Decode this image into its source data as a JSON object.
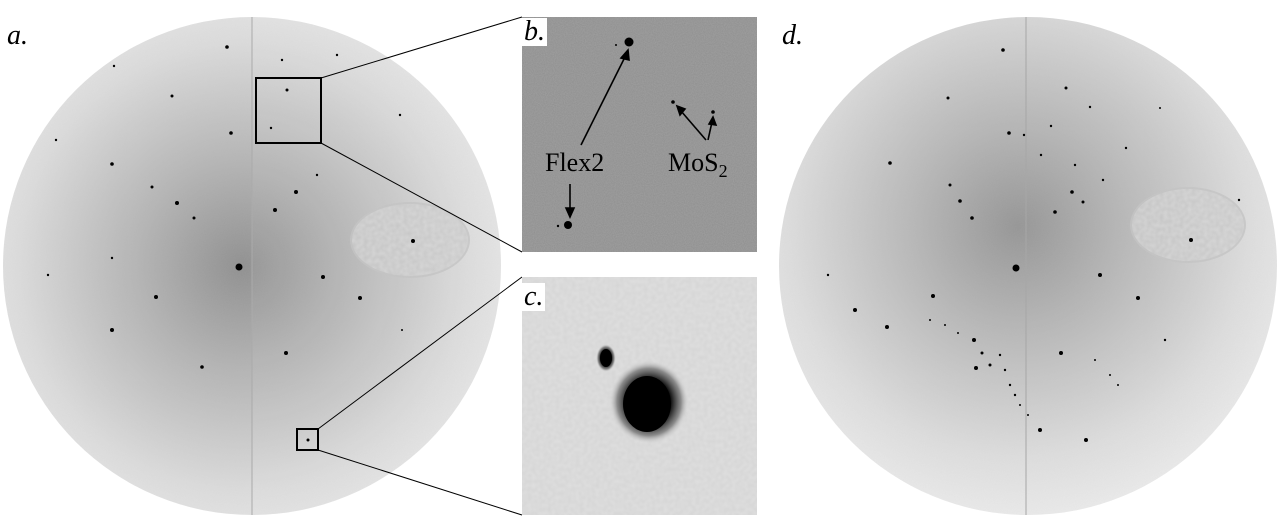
{
  "panels": {
    "a": {
      "label": "a."
    },
    "b": {
      "label": "b.",
      "annotations": {
        "flex2": "Flex2",
        "mos2_base": "MoS",
        "mos2_sub": "2"
      }
    },
    "c": {
      "label": "c."
    },
    "d": {
      "label": "d."
    }
  },
  "colors": {
    "screen_light": "#e9e9e9",
    "screen_dark": "#9b9b9b",
    "spot": "#000000",
    "inset_bg": "#8e8e8e"
  }
}
